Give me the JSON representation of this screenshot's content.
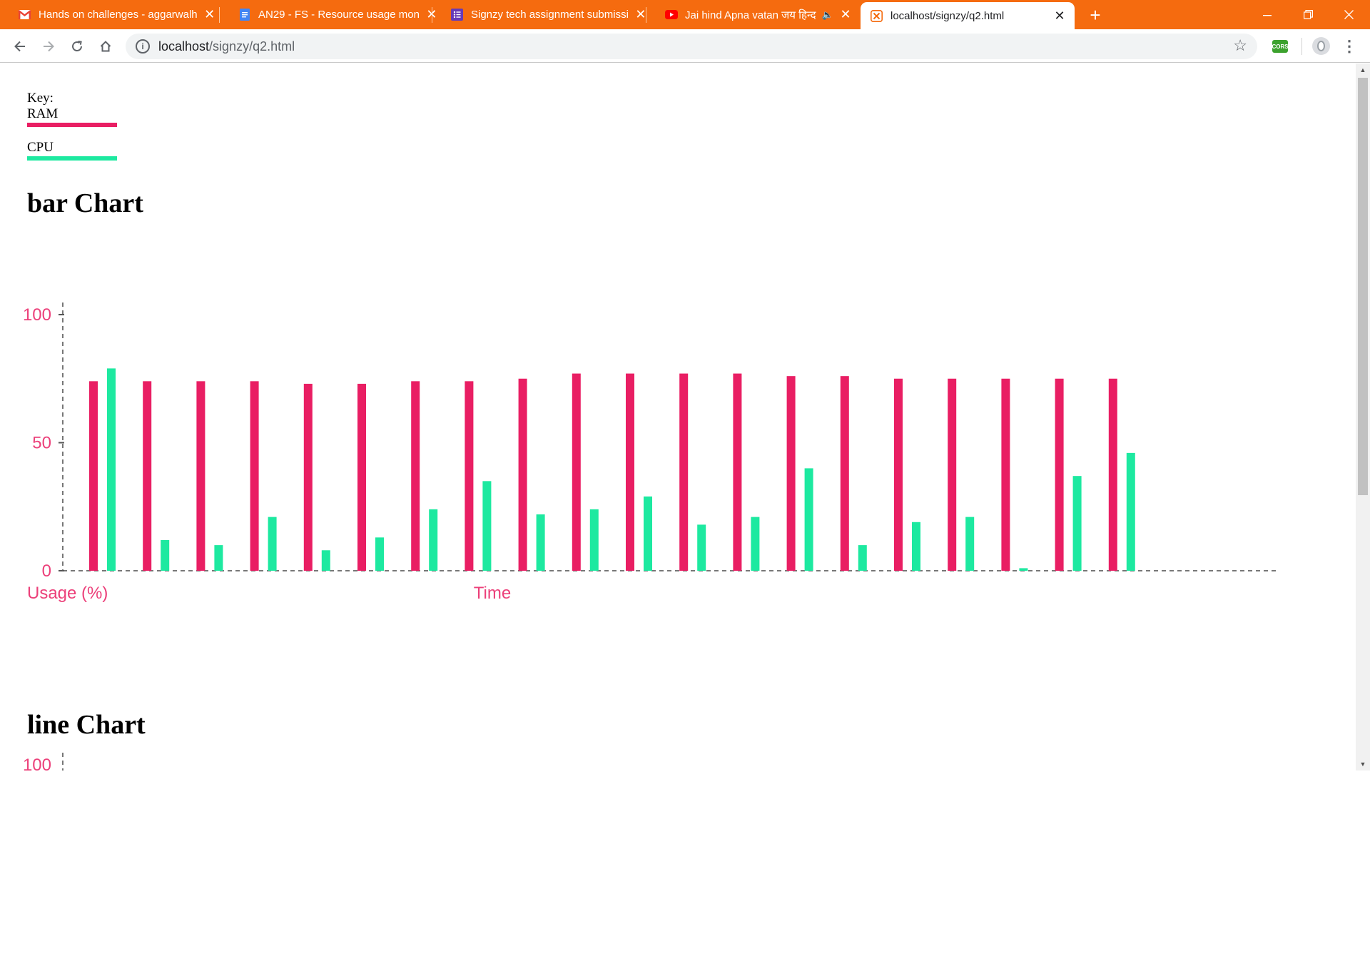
{
  "browser": {
    "tabs": [
      {
        "title": "Hands on challenges - aggarwalh",
        "icon": "gmail-icon",
        "active": false
      },
      {
        "title": "AN29 - FS - Resource usage mon",
        "icon": "google-docs-icon",
        "active": false
      },
      {
        "title": "Signzy tech assignment submissi",
        "icon": "google-forms-icon",
        "active": false
      },
      {
        "title": "Jai hind Apna vatan जय हिन्द",
        "icon": "youtube-icon",
        "active": false,
        "audio": true
      },
      {
        "title": "localhost/signzy/q2.html",
        "icon": "xampp-icon",
        "active": true
      }
    ],
    "address": {
      "host": "localhost",
      "path": "/signzy/q2.html"
    },
    "extension_label": "CORS",
    "accent": "#f56b0f"
  },
  "page": {
    "key_label": "Key:",
    "legend": [
      {
        "label": "RAM",
        "color": "#e91e63"
      },
      {
        "label": "CPU",
        "color": "#1de9a0"
      }
    ],
    "bar_title": "bar Chart",
    "line_title": "line Chart"
  },
  "chart_data": [
    {
      "type": "bar",
      "title": "bar Chart",
      "xlabel": "Time",
      "ylabel": "Usage (%)",
      "ylim": [
        0,
        100
      ],
      "yticks": [
        0,
        50,
        100
      ],
      "grid": false,
      "legend": "top-left",
      "series": [
        {
          "name": "RAM",
          "color": "#e91e63",
          "values": [
            74,
            74,
            74,
            74,
            73,
            73,
            74,
            74,
            75,
            77,
            77,
            77,
            77,
            76,
            76,
            75,
            75,
            75,
            75,
            75
          ]
        },
        {
          "name": "CPU",
          "color": "#1de9a0",
          "values": [
            79,
            12,
            10,
            21,
            8,
            13,
            24,
            35,
            22,
            24,
            29,
            18,
            21,
            40,
            10,
            19,
            21,
            1,
            37,
            46
          ]
        }
      ]
    },
    {
      "type": "line",
      "title": "line Chart",
      "ylim": [
        0,
        100
      ],
      "yticks": [
        100
      ],
      "visible_tick_labels": [
        "100"
      ]
    }
  ]
}
